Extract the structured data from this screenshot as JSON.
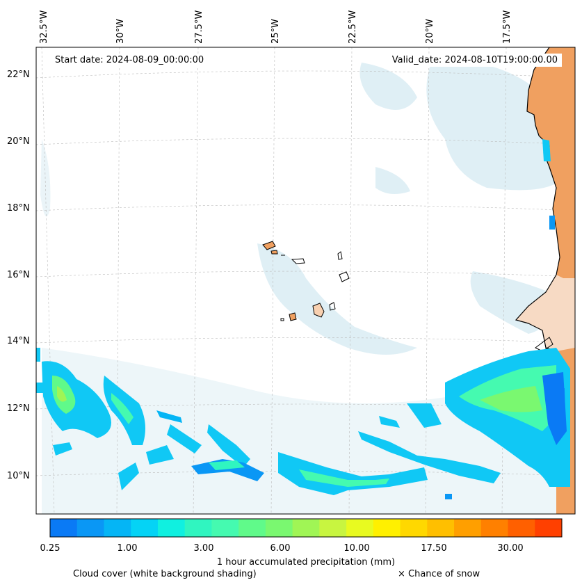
{
  "map": {
    "start_date": "Start date: 2024-08-09_00:00:00",
    "valid_date": "Valid_date: 2024-08-10T19:00:00.00",
    "lon_labels": [
      "32.5°W",
      "30°W",
      "27.5°W",
      "25°W",
      "22.5°W",
      "20°W",
      "17.5°W"
    ],
    "lat_labels": [
      "22°N",
      "20°N",
      "18°N",
      "16°N",
      "14°N",
      "12°N",
      "10°N"
    ],
    "land_color": "#f0a060",
    "coastline_color": "#000000",
    "gridlines": true
  },
  "colorbar": {
    "tick_labels": [
      "0.25",
      "1.00",
      "3.00",
      "6.00",
      "10.00",
      "17.50",
      "30.00"
    ],
    "colors": [
      "#0a7af5",
      "#0a97f5",
      "#05b5f5",
      "#05d3f5",
      "#10f0e0",
      "#30f5c0",
      "#45fab0",
      "#60fa8a",
      "#7af870",
      "#a0f555",
      "#c8f540",
      "#e8fa20",
      "#fff000",
      "#ffd800",
      "#ffbf00",
      "#ff9f00",
      "#ff8000",
      "#ff6000",
      "#ff4000"
    ],
    "title": "1 hour accumulated precipitation (mm)"
  },
  "legend": {
    "cloud_cover": "Cloud cover (white background shading)",
    "snow": "× Chance of snow"
  }
}
